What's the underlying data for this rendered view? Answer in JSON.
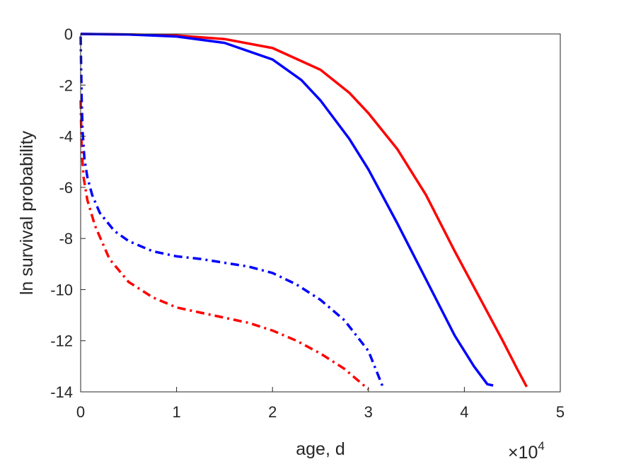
{
  "chart_data": {
    "type": "line",
    "title": "",
    "xlabel": "age, d",
    "ylabel": "ln survival probability",
    "x_exponent_label": {
      "base": "×10",
      "power": "4"
    },
    "xlim": [
      0,
      50000
    ],
    "ylim": [
      -14,
      0
    ],
    "xticks": [
      0,
      10000,
      20000,
      30000,
      40000,
      50000
    ],
    "xtick_labels": [
      "0",
      "1",
      "2",
      "3",
      "4",
      "5"
    ],
    "yticks": [
      0,
      -2,
      -4,
      -6,
      -8,
      -10,
      -12,
      -14
    ],
    "ytick_labels": [
      "0",
      "-2",
      "-4",
      "-6",
      "-8",
      "-10",
      "-12",
      "-14"
    ],
    "grid": false,
    "series": [
      {
        "color": "#ff0000",
        "style": "solid",
        "points": [
          [
            0,
            0
          ],
          [
            5000,
            -0.02
          ],
          [
            10000,
            -0.06
          ],
          [
            15000,
            -0.2
          ],
          [
            20000,
            -0.55
          ],
          [
            25000,
            -1.4
          ],
          [
            28000,
            -2.3
          ],
          [
            30000,
            -3.1
          ],
          [
            33000,
            -4.5
          ],
          [
            36000,
            -6.3
          ],
          [
            39000,
            -8.5
          ],
          [
            42000,
            -10.6
          ],
          [
            44000,
            -12.0
          ],
          [
            45500,
            -13.1
          ],
          [
            46500,
            -13.8
          ]
        ]
      },
      {
        "color": "#0000ff",
        "style": "solid",
        "points": [
          [
            0,
            0
          ],
          [
            5000,
            -0.02
          ],
          [
            10000,
            -0.1
          ],
          [
            15000,
            -0.35
          ],
          [
            20000,
            -1.0
          ],
          [
            23000,
            -1.8
          ],
          [
            25000,
            -2.6
          ],
          [
            28000,
            -4.1
          ],
          [
            30000,
            -5.3
          ],
          [
            33000,
            -7.4
          ],
          [
            36000,
            -9.6
          ],
          [
            39000,
            -11.8
          ],
          [
            41000,
            -13.0
          ],
          [
            42400,
            -13.7
          ],
          [
            43000,
            -13.75
          ]
        ]
      },
      {
        "color": "#ff0000",
        "style": "dashdot",
        "points": [
          [
            0,
            -2.6
          ],
          [
            100,
            -4.5
          ],
          [
            300,
            -5.6
          ],
          [
            700,
            -6.5
          ],
          [
            1500,
            -7.5
          ],
          [
            3000,
            -8.8
          ],
          [
            5000,
            -9.7
          ],
          [
            7500,
            -10.3
          ],
          [
            10000,
            -10.7
          ],
          [
            12500,
            -10.9
          ],
          [
            15000,
            -11.1
          ],
          [
            17500,
            -11.3
          ],
          [
            20000,
            -11.6
          ],
          [
            22500,
            -12.0
          ],
          [
            25000,
            -12.5
          ],
          [
            27500,
            -13.1
          ],
          [
            30000,
            -13.9
          ]
        ]
      },
      {
        "color": "#0000ff",
        "style": "dashdot",
        "points": [
          [
            0,
            -0.1
          ],
          [
            100,
            -2.5
          ],
          [
            200,
            -3.8
          ],
          [
            400,
            -4.9
          ],
          [
            700,
            -5.6
          ],
          [
            1200,
            -6.3
          ],
          [
            2000,
            -7.0
          ],
          [
            3500,
            -7.7
          ],
          [
            5000,
            -8.1
          ],
          [
            7500,
            -8.5
          ],
          [
            10000,
            -8.7
          ],
          [
            12500,
            -8.8
          ],
          [
            15000,
            -8.95
          ],
          [
            17500,
            -9.1
          ],
          [
            20000,
            -9.35
          ],
          [
            22500,
            -9.8
          ],
          [
            25000,
            -10.4
          ],
          [
            27500,
            -11.2
          ],
          [
            30000,
            -12.4
          ],
          [
            31500,
            -13.8
          ]
        ]
      }
    ]
  }
}
